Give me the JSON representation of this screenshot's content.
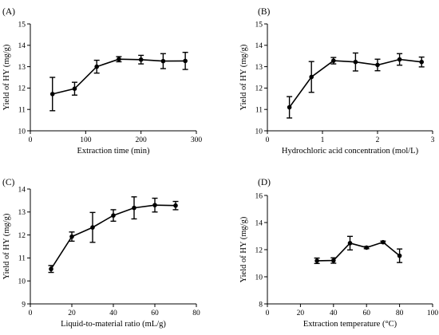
{
  "chart_data": [
    {
      "type": "line",
      "panel_label": "(A)",
      "xlabel": "Extraction time (min)",
      "ylabel": "Yield of HY (mg/g)",
      "xlim": [
        0,
        300
      ],
      "ylim": [
        10,
        15
      ],
      "xticks": [
        0,
        100,
        200,
        300
      ],
      "yticks": [
        10,
        11,
        12,
        13,
        14,
        15
      ],
      "grid": false,
      "series": [
        {
          "x": [
            40,
            80,
            120,
            160,
            200,
            240,
            280
          ],
          "y": [
            11.72,
            11.97,
            13.0,
            13.35,
            13.33,
            13.26,
            13.27
          ],
          "err": [
            0.78,
            0.3,
            0.3,
            0.12,
            0.2,
            0.35,
            0.4
          ]
        }
      ]
    },
    {
      "type": "line",
      "panel_label": "(B)",
      "xlabel": "Hydrochloric acid concentration (mol/L)",
      "ylabel": "Yield of HY (mg/g)",
      "xlim": [
        0,
        3
      ],
      "ylim": [
        10,
        15
      ],
      "xticks": [
        0,
        1,
        2,
        3
      ],
      "yticks": [
        10,
        11,
        12,
        13,
        14,
        15
      ],
      "grid": false,
      "series": [
        {
          "x": [
            0.4,
            0.8,
            1.2,
            1.6,
            2.0,
            2.4,
            2.8
          ],
          "y": [
            11.1,
            12.52,
            13.28,
            13.22,
            13.08,
            13.34,
            13.22
          ],
          "err": [
            0.5,
            0.72,
            0.15,
            0.42,
            0.27,
            0.27,
            0.23
          ]
        }
      ]
    },
    {
      "type": "line",
      "panel_label": "(C)",
      "xlabel": "Liquid-to-material ratio (mL/g)",
      "ylabel": "Yield of HY (mg/g)",
      "xlim": [
        0,
        80
      ],
      "ylim": [
        9,
        14
      ],
      "xticks": [
        0,
        20,
        40,
        60,
        80
      ],
      "yticks": [
        9,
        10,
        11,
        12,
        13,
        14
      ],
      "grid": false,
      "series": [
        {
          "x": [
            10,
            20,
            30,
            40,
            50,
            60,
            70
          ],
          "y": [
            10.52,
            11.93,
            12.33,
            12.85,
            13.18,
            13.3,
            13.28
          ],
          "err": [
            0.15,
            0.2,
            0.65,
            0.25,
            0.48,
            0.3,
            0.18
          ]
        }
      ]
    },
    {
      "type": "line",
      "panel_label": "(D)",
      "xlabel": "Extraction temperature (°C)",
      "ylabel": "Yield of HY (mg/g)",
      "xlim": [
        0,
        100
      ],
      "ylim": [
        8,
        16
      ],
      "xticks": [
        0,
        20,
        40,
        60,
        80,
        100
      ],
      "yticks": [
        8,
        10,
        12,
        14,
        16
      ],
      "grid": false,
      "series": [
        {
          "x": [
            30,
            40,
            50,
            60,
            70,
            80
          ],
          "y": [
            11.18,
            11.2,
            12.48,
            12.15,
            12.55,
            11.55
          ],
          "err": [
            0.2,
            0.2,
            0.5,
            0.08,
            0.08,
            0.5
          ]
        }
      ]
    }
  ]
}
